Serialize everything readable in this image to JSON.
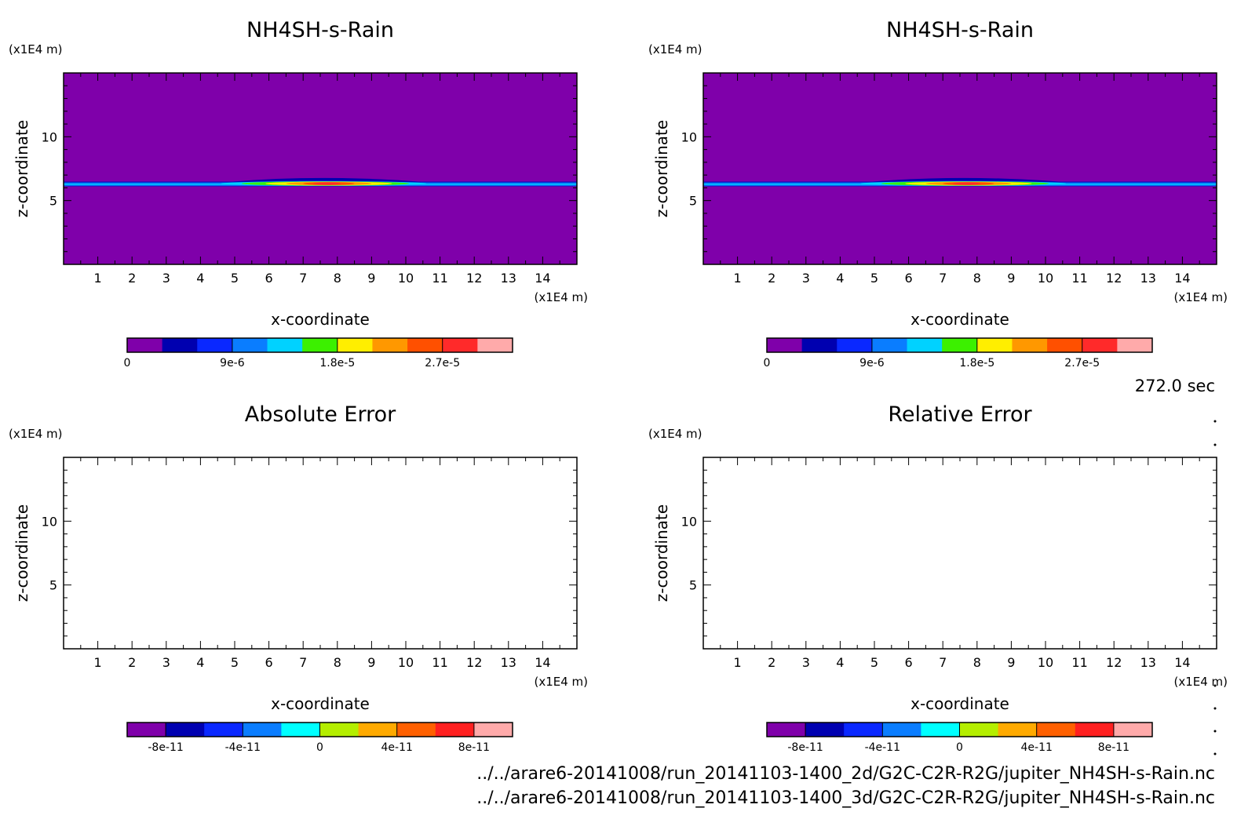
{
  "time_label": "272.0 sec",
  "file_paths": [
    "../../arare6-20141008/run_20141103-1400_2d/G2C-C2R-R2G/jupiter_NH4SH-s-Rain.nc",
    "../../arare6-20141008/run_20141103-1400_3d/G2C-C2R-R2G/jupiter_NH4SH-s-Rain.nc"
  ],
  "chart_data": [
    {
      "type": "heatmap",
      "title": "NH4SH-s-Rain",
      "xlabel": "x-coordinate",
      "ylabel": "z-coordinate",
      "x_unit": "(x1E4 m)",
      "y_unit": "(x1E4 m)",
      "xlim": [
        0,
        15
      ],
      "ylim": [
        0,
        15
      ],
      "x_ticks": [
        "1",
        "2",
        "3",
        "4",
        "5",
        "6",
        "7",
        "8",
        "9",
        "10",
        "11",
        "12",
        "13",
        "14"
      ],
      "y_ticks": [
        "5",
        "10"
      ],
      "background_level": 0,
      "band_z": 6.3,
      "cloud_x_range": [
        4.2,
        11.2
      ],
      "cloud_peak_x": 7.5,
      "cloud_top_z": 7.0,
      "colorbar": {
        "colors": [
          "#7f00aa",
          "#0000b0",
          "#0a28ff",
          "#0a7dff",
          "#00d2ff",
          "#3cf000",
          "#ffee00",
          "#ff9800",
          "#ff5000",
          "#ff2a2a",
          "#ffaaaa"
        ],
        "labels": [
          "0",
          "9e-6",
          "1.8e-5",
          "2.7e-5"
        ],
        "label_bins": [
          0,
          3,
          6,
          9
        ]
      }
    },
    {
      "type": "heatmap",
      "title": "NH4SH-s-Rain",
      "xlabel": "x-coordinate",
      "ylabel": "z-coordinate",
      "x_unit": "(x1E4 m)",
      "y_unit": "(x1E4 m)",
      "xlim": [
        0,
        15
      ],
      "ylim": [
        0,
        15
      ],
      "x_ticks": [
        "1",
        "2",
        "3",
        "4",
        "5",
        "6",
        "7",
        "8",
        "9",
        "10",
        "11",
        "12",
        "13",
        "14"
      ],
      "y_ticks": [
        "5",
        "10"
      ],
      "background_level": 0,
      "band_z": 6.3,
      "cloud_x_range": [
        4.2,
        11.2
      ],
      "cloud_peak_x": 7.5,
      "cloud_top_z": 7.0,
      "colorbar": {
        "colors": [
          "#7f00aa",
          "#0000b0",
          "#0a28ff",
          "#0a7dff",
          "#00d2ff",
          "#3cf000",
          "#ffee00",
          "#ff9800",
          "#ff5000",
          "#ff2a2a",
          "#ffaaaa"
        ],
        "labels": [
          "0",
          "9e-6",
          "1.8e-5",
          "2.7e-5"
        ],
        "label_bins": [
          0,
          3,
          6,
          9
        ]
      }
    },
    {
      "type": "heatmap",
      "title": "Absolute Error",
      "xlabel": "x-coordinate",
      "ylabel": "z-coordinate",
      "x_unit": "(x1E4 m)",
      "y_unit": "(x1E4 m)",
      "xlim": [
        0,
        15
      ],
      "ylim": [
        0,
        15
      ],
      "x_ticks": [
        "1",
        "2",
        "3",
        "4",
        "5",
        "6",
        "7",
        "8",
        "9",
        "10",
        "11",
        "12",
        "13",
        "14"
      ],
      "y_ticks": [
        "5",
        "10"
      ],
      "field": "blank",
      "colorbar": {
        "colors": [
          "#7f00aa",
          "#0000b0",
          "#0a28ff",
          "#0a7dff",
          "#00ffff",
          "#b4ee00",
          "#ffaa00",
          "#ff6000",
          "#ff2020",
          "#ffaaaa"
        ],
        "labels": [
          "-8e-11",
          "-4e-11",
          "0",
          "4e-11",
          "8e-11"
        ],
        "label_bins": [
          1,
          3,
          5,
          7,
          9
        ]
      }
    },
    {
      "type": "heatmap",
      "title": "Relative Error",
      "xlabel": "x-coordinate",
      "ylabel": "z-coordinate",
      "x_unit": "(x1E4 m)",
      "y_unit": "(x1E4 m)",
      "xlim": [
        0,
        15
      ],
      "ylim": [
        0,
        15
      ],
      "x_ticks": [
        "1",
        "2",
        "3",
        "4",
        "5",
        "6",
        "7",
        "8",
        "9",
        "10",
        "11",
        "12",
        "13",
        "14"
      ],
      "y_ticks": [
        "5",
        "10"
      ],
      "field": "blank",
      "colorbar": {
        "colors": [
          "#7f00aa",
          "#0000b0",
          "#0a28ff",
          "#0a7dff",
          "#00ffff",
          "#b4ee00",
          "#ffaa00",
          "#ff6000",
          "#ff2020",
          "#ffaaaa"
        ],
        "labels": [
          "-8e-11",
          "-4e-11",
          "0",
          "4e-11",
          "8e-11"
        ],
        "label_bins": [
          1,
          3,
          5,
          7,
          9
        ]
      }
    }
  ]
}
